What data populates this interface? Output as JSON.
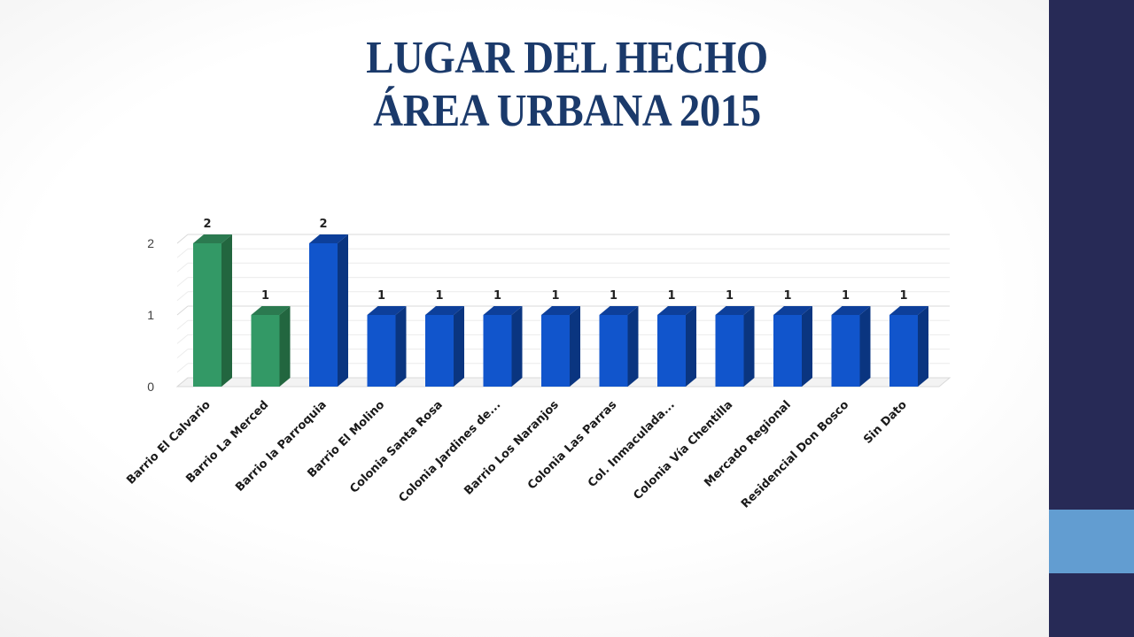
{
  "title": {
    "line1": "LUGAR DEL HECHO",
    "line2": "ÁREA URBANA 2015"
  },
  "colors": {
    "sidebar": "#272a56",
    "sidebar_accent": "#629dd1",
    "title": "#1b3a6b",
    "bar_green": "#339966",
    "bar_blue": "#1155cc"
  },
  "chart_data": {
    "type": "bar",
    "style": "3d-column",
    "categories": [
      "Barrio El Calvario",
      "Barrio La Merced",
      "Barrio la Parroquia",
      "Barrio El Molino",
      "Colonia Santa Rosa",
      "Colonia Jardines de...",
      "Barrio Los Naranjos",
      "Colonia Las Parras",
      "Col. Inmaculada...",
      "Colonia Vía Chentilla",
      "Mercado Regional",
      "Residencial Don Bosco",
      "Sin Dato"
    ],
    "values": [
      2,
      1,
      2,
      1,
      1,
      1,
      1,
      1,
      1,
      1,
      1,
      1,
      1
    ],
    "bar_colors": [
      "green",
      "green",
      "blue",
      "blue",
      "blue",
      "blue",
      "blue",
      "blue",
      "blue",
      "blue",
      "blue",
      "blue",
      "blue"
    ],
    "data_labels": [
      "2",
      "1",
      "2",
      "1",
      "1",
      "1",
      "1",
      "1",
      "1",
      "1",
      "1",
      "1",
      "1"
    ],
    "ylim": [
      0,
      2
    ],
    "yticks": [
      0,
      1,
      2
    ],
    "ytick_labels": [
      "0",
      "1",
      "2"
    ],
    "grid": true,
    "legend": "none"
  }
}
